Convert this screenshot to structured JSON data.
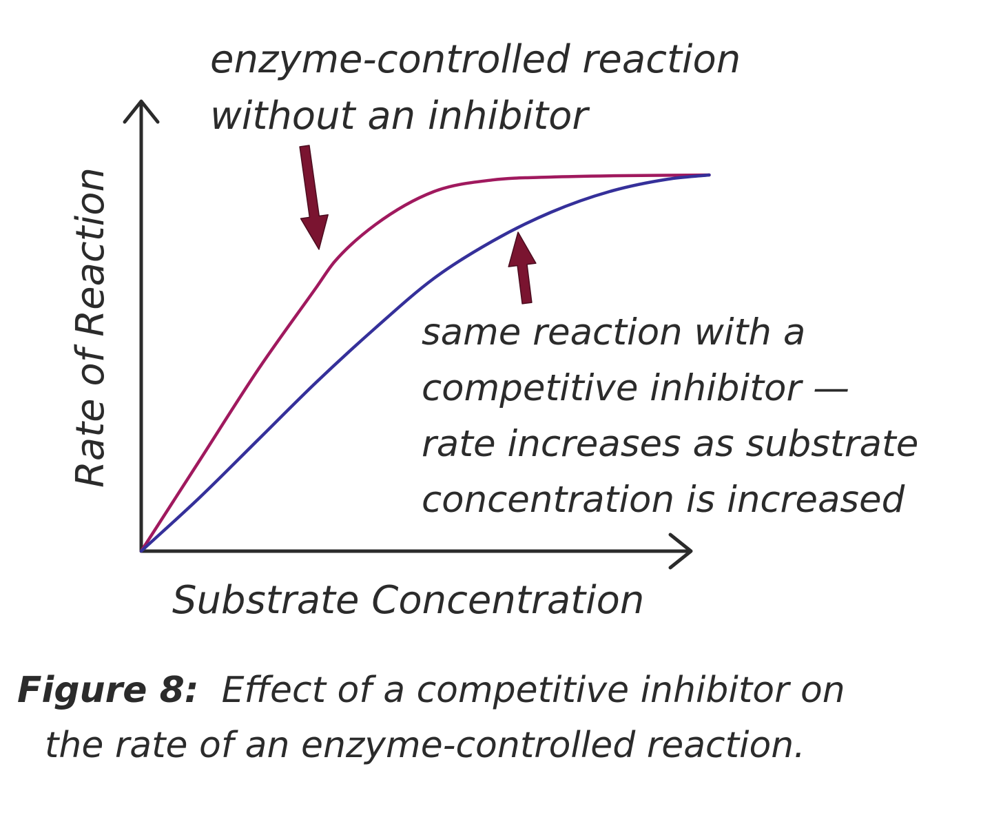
{
  "chart_data": {
    "type": "line",
    "xlabel": "Substrate Concentration",
    "ylabel": "Rate of Reaction",
    "xlim": [
      0,
      10
    ],
    "ylim": [
      0,
      10
    ],
    "grid": false,
    "series": [
      {
        "color": "#a0195e",
        "x": [
          0,
          1,
          2,
          3,
          3.3,
          4,
          5,
          6,
          7,
          8,
          9.7
        ],
        "y": [
          0,
          2.2,
          4.4,
          6.4,
          7.0,
          7.9,
          8.7,
          8.98,
          9.05,
          9.08,
          9.1
        ]
      },
      {
        "color": "#35309a",
        "x": [
          0,
          1,
          2,
          3,
          4,
          5,
          6,
          7,
          8,
          9,
          9.7
        ],
        "y": [
          0,
          1.3,
          2.7,
          4.1,
          5.4,
          6.6,
          7.5,
          8.2,
          8.7,
          9.0,
          9.1
        ]
      }
    ],
    "annotations": [
      {
        "lines": [
          "enzyme-controlled reaction",
          "without an inhibitor"
        ],
        "points_to_series": 0
      },
      {
        "lines": [
          "same reaction with a",
          "competitive inhibitor —",
          "rate increases as substrate",
          "concentration is increased"
        ],
        "points_to_series": 1
      }
    ],
    "arrow_color": "#7a1430",
    "axis_color": "#2b2b2b"
  },
  "caption": {
    "label": "Figure 8:",
    "text_line1": "Effect of a competitive inhibitor on",
    "text_line2": "the rate of an enzyme-controlled reaction."
  }
}
